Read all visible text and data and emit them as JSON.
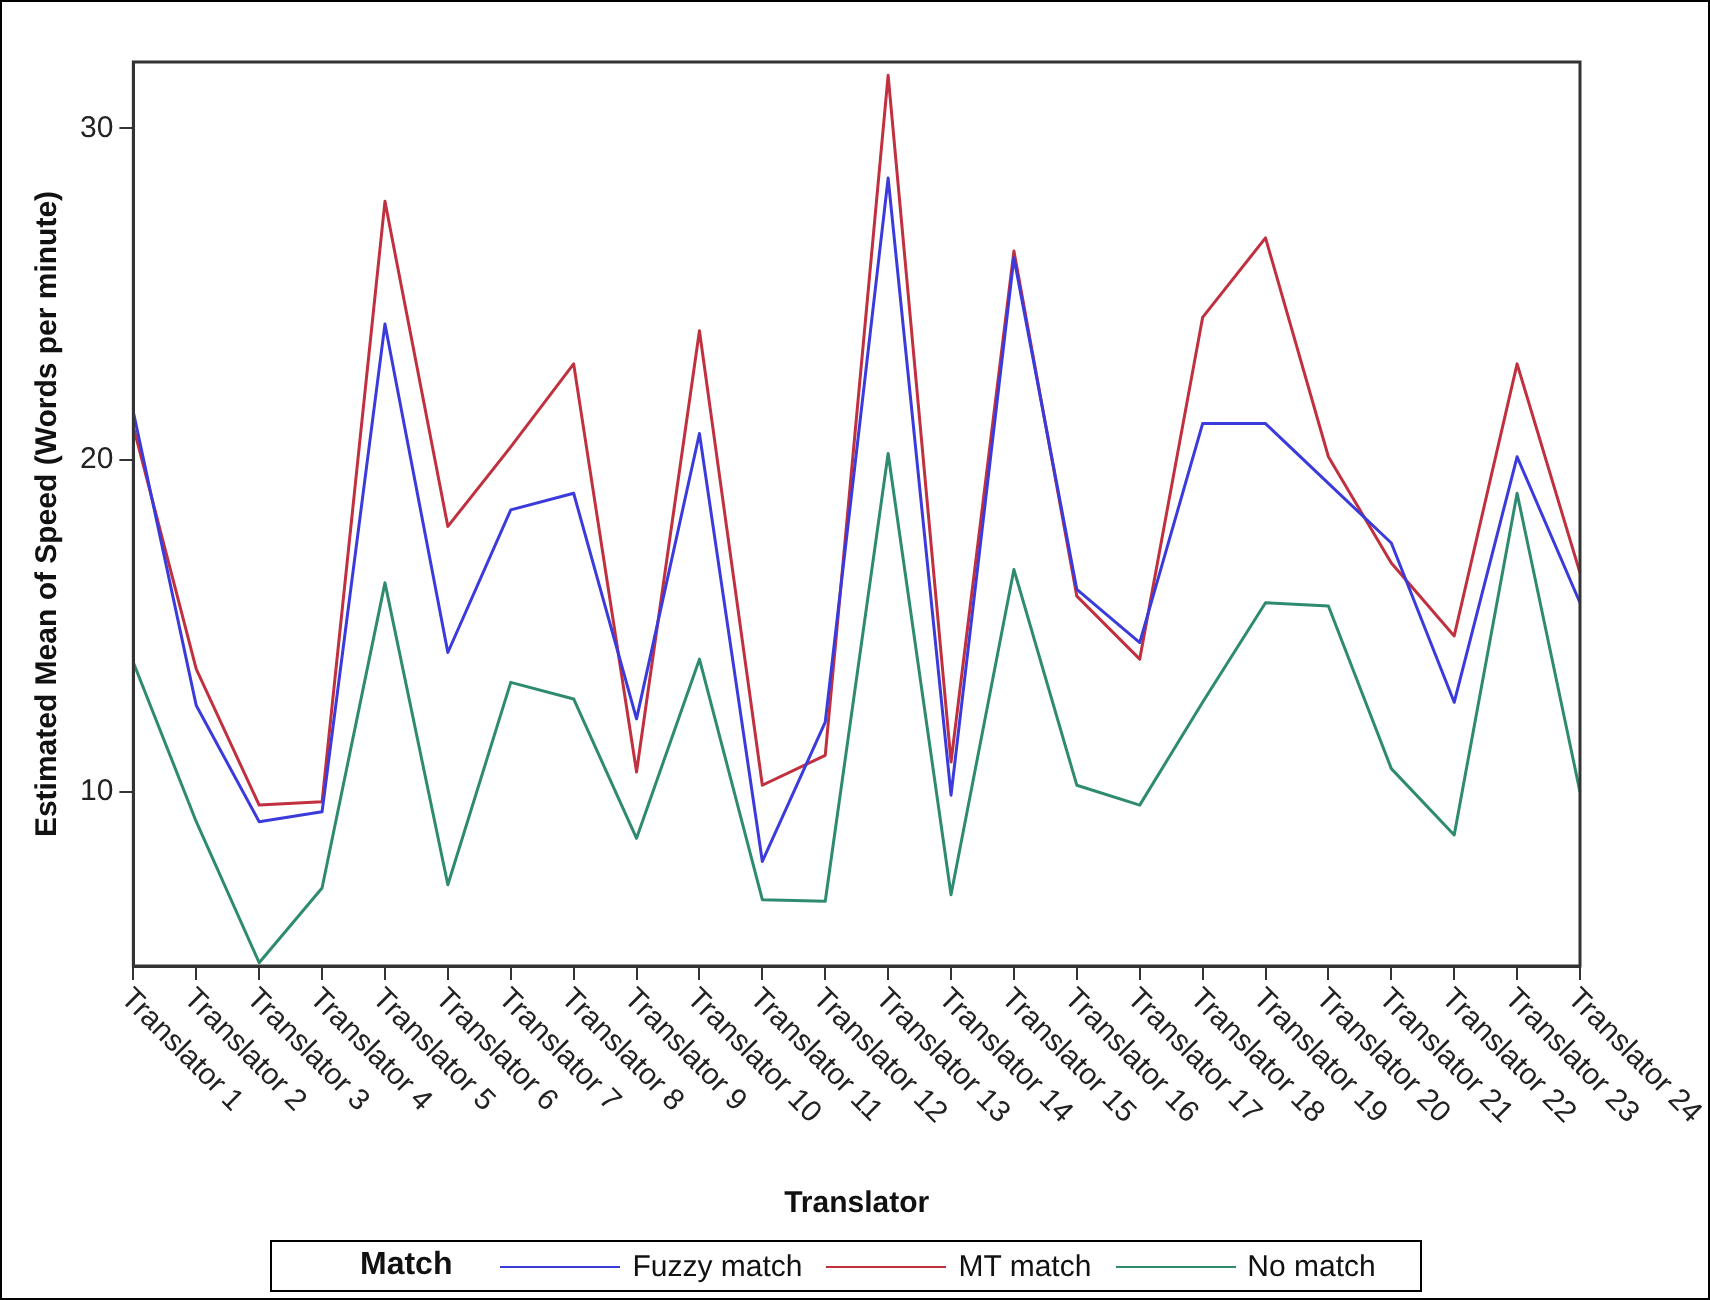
{
  "chart_data": {
    "type": "line",
    "xlabel": "Translator",
    "ylabel": "Estimated Mean of Speed (Words per minute)",
    "legend_title": "Match",
    "categories": [
      "Translator 1",
      "Translator 2",
      "Translator 3",
      "Translator 4",
      "Translator 5",
      "Translator 6",
      "Translator 7",
      "Translator 8",
      "Translator 9",
      "Translator 10",
      "Translator 11",
      "Translator 12",
      "Translator 13",
      "Translator 14",
      "Translator 15",
      "Translator 16",
      "Translator 17",
      "Translator 18",
      "Translator 19",
      "Translator 20",
      "Translator 21",
      "Translator 22",
      "Translator 23",
      "Translator 24"
    ],
    "series": [
      {
        "name": "Fuzzy match",
        "color": "#3b3bdc",
        "values": [
          21.45,
          12.6,
          9.1,
          9.4,
          24.1,
          14.2,
          18.5,
          19.0,
          12.2,
          20.8,
          7.9,
          12.1,
          28.5,
          9.9,
          26.1,
          16.1,
          14.5,
          21.1,
          21.1,
          19.3,
          17.5,
          12.7,
          20.1,
          15.7
        ]
      },
      {
        "name": "MT match",
        "color": "#c0303f",
        "values": [
          21.0,
          13.7,
          9.6,
          9.7,
          27.8,
          18.0,
          20.4,
          22.9,
          10.6,
          23.9,
          10.2,
          11.1,
          31.6,
          10.9,
          26.3,
          15.9,
          14.0,
          24.3,
          26.7,
          20.1,
          16.9,
          14.7,
          22.9,
          16.6
        ]
      },
      {
        "name": "No match",
        "color": "#2e8b70",
        "values": [
          13.9,
          9.1,
          4.85,
          7.1,
          16.3,
          7.2,
          13.3,
          12.8,
          8.6,
          14.0,
          6.75,
          6.7,
          20.2,
          6.9,
          16.7,
          10.2,
          9.6,
          12.7,
          15.7,
          15.6,
          10.7,
          8.7,
          19.0,
          10.0
        ]
      }
    ],
    "ylim": [
      4.75,
      32
    ],
    "yticks": [
      10,
      20,
      30
    ],
    "grid": false,
    "legend": "bottom",
    "marker": "none",
    "line_style": "solid"
  }
}
